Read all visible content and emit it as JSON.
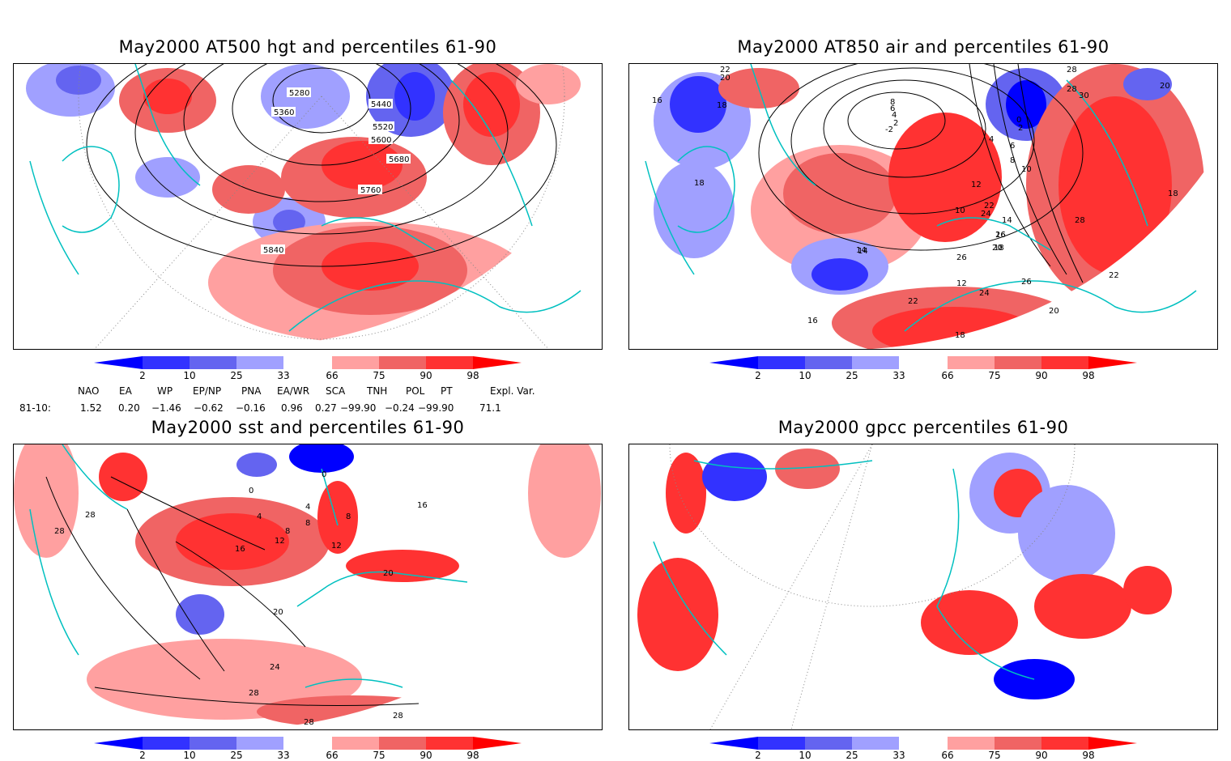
{
  "panels": [
    {
      "id": "hgt",
      "title": "May2000 AT500 hgt and percentiles 61-90",
      "contour_labels": [
        "5280",
        "5360",
        "5440",
        "5520",
        "5600",
        "5680",
        "5760",
        "5840"
      ]
    },
    {
      "id": "air",
      "title": "May2000 AT850 air and percentiles 61-90",
      "contour_labels": [
        "22",
        "20",
        "16",
        "18",
        "18",
        "14",
        "12",
        "10",
        "8",
        "6",
        "4",
        "2",
        "-2",
        "0",
        "2",
        "4",
        "6",
        "8",
        "10",
        "12",
        "14",
        "16",
        "18",
        "20",
        "22",
        "24",
        "26",
        "26",
        "28",
        "30",
        "28",
        "20",
        "18",
        "14",
        "16",
        "28",
        "22",
        "26",
        "24",
        "22",
        "20",
        "18"
      ]
    },
    {
      "id": "sst",
      "title": "May2000 sst and percentiles 61-90",
      "contour_labels": [
        "28",
        "28",
        "0",
        "0",
        "4",
        "4",
        "8",
        "8",
        "8",
        "12",
        "16",
        "12",
        "16",
        "20",
        "20",
        "24",
        "28",
        "28",
        "28"
      ]
    },
    {
      "id": "gpcc",
      "title": "May2000 gpcc percentiles 61-90",
      "contour_labels": []
    }
  ],
  "colorbar": {
    "ticks": [
      "2",
      "10",
      "25",
      "33",
      "66",
      "75",
      "90",
      "98"
    ],
    "colors": {
      "deep_blue": "#0000ff",
      "blue": "#3232ff",
      "mid_blue": "#6464f0",
      "light_blue": "#a0a0ff",
      "light_red": "#ffa0a0",
      "mid_red": "#f06464",
      "red": "#ff3232",
      "deep_red": "#ff0000"
    }
  },
  "indices": {
    "headers": [
      "NAO",
      "EA",
      "WP",
      "EP/NP",
      "PNA",
      "EA/WR",
      "SCA",
      "TNH",
      "POL",
      "PT",
      "Expl. Var."
    ],
    "row_label": "81-10:",
    "values": [
      "1.52",
      "0.20",
      "−1.46",
      "−0.62",
      "−0.16",
      "0.96",
      "0.27",
      "−99.90",
      "−0.24",
      "−99.90",
      "71.1"
    ]
  },
  "colors": {
    "coast": "#00c0c0",
    "contour": "#000000",
    "grid": "#808080"
  }
}
